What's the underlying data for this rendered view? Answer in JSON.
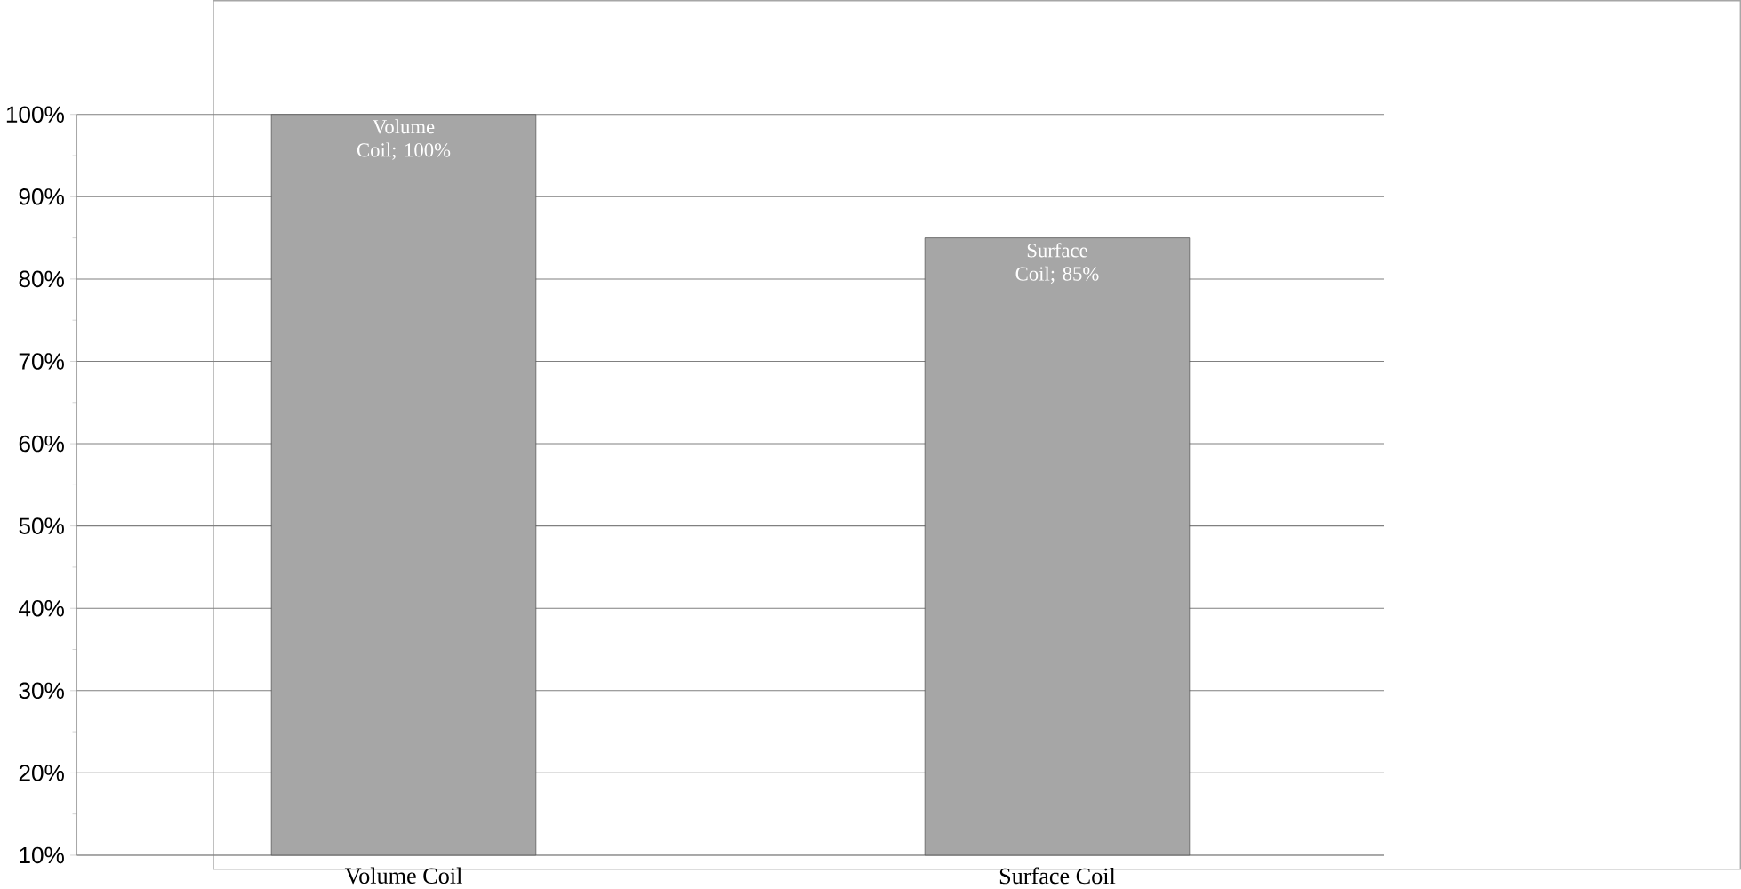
{
  "chart_data": {
    "type": "bar",
    "categories": [
      "Volume Coil",
      "Surface Coil"
    ],
    "values": [
      100,
      85
    ],
    "color": "#a6a6a6",
    "value_labels": [
      "Volume Coil; 100%",
      "Surface Coil; 85%"
    ],
    "ylim": [
      10,
      100
    ],
    "yticks": [
      {
        "value": 10,
        "label": "10%"
      },
      {
        "value": 20,
        "label": "20%"
      },
      {
        "value": 30,
        "label": "30%"
      },
      {
        "value": 40,
        "label": "40%"
      },
      {
        "value": 50,
        "label": "50%"
      },
      {
        "value": 60,
        "label": "60%"
      },
      {
        "value": 70,
        "label": "70%"
      },
      {
        "value": 80,
        "label": "80%"
      },
      {
        "value": 90,
        "label": "90%"
      },
      {
        "value": 100,
        "label": "100%"
      }
    ],
    "grid": "y"
  }
}
